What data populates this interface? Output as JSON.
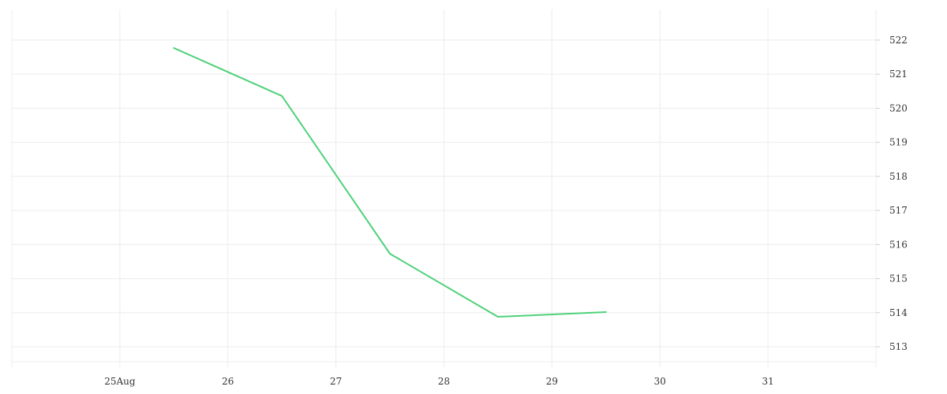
{
  "chart_data": {
    "type": "line",
    "title": "",
    "xlabel": "",
    "ylabel": "",
    "grid": true,
    "legend": "none",
    "y_axis_side": "right",
    "xlim": [
      "2024-08-24",
      "2024-09-01"
    ],
    "ylim": [
      512.4,
      522.9
    ],
    "x_ticks": [
      {
        "date": "2024-08-25",
        "label": "25Aug"
      },
      {
        "date": "2024-08-26",
        "label": "26"
      },
      {
        "date": "2024-08-27",
        "label": "27"
      },
      {
        "date": "2024-08-28",
        "label": "28"
      },
      {
        "date": "2024-08-29",
        "label": "29"
      },
      {
        "date": "2024-08-30",
        "label": "30"
      },
      {
        "date": "2024-08-31",
        "label": "31"
      }
    ],
    "y_ticks": [
      513,
      514,
      515,
      516,
      517,
      518,
      519,
      520,
      521,
      522
    ],
    "series": [
      {
        "color": "#4fd17a",
        "points": [
          {
            "x": "2024-08-25T12:00",
            "y": 521.77
          },
          {
            "x": "2024-08-26T12:00",
            "y": 520.36
          },
          {
            "x": "2024-08-27T12:00",
            "y": 515.73
          },
          {
            "x": "2024-08-28T12:00",
            "y": 513.88
          },
          {
            "x": "2024-08-29T12:00",
            "y": 514.02
          }
        ]
      }
    ]
  }
}
